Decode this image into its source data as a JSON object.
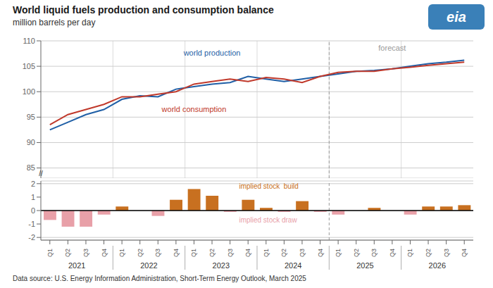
{
  "chart_data": [
    {
      "type": "line",
      "title": "World liquid fuels production and consumption balance",
      "subtitle": "million barrels per day",
      "categories": [
        "Q1",
        "Q2",
        "Q3",
        "Q4",
        "Q1",
        "Q2",
        "Q3",
        "Q4",
        "Q1",
        "Q2",
        "Q3",
        "Q4",
        "Q1",
        "Q2",
        "Q3",
        "Q4",
        "Q1",
        "Q2",
        "Q3",
        "Q4",
        "Q1",
        "Q2",
        "Q3",
        "Q4"
      ],
      "groups": [
        "2021",
        "2022",
        "2023",
        "2024",
        "2025",
        "2026"
      ],
      "series": [
        {
          "name": "world production",
          "color": "#1f5fa6",
          "values": [
            92.5,
            94.0,
            95.5,
            96.5,
            98.5,
            99.2,
            99.0,
            100.5,
            101.0,
            101.5,
            101.8,
            103.0,
            102.5,
            102.0,
            102.5,
            103.0,
            103.5,
            104.0,
            104.2,
            104.5,
            105.0,
            105.5,
            105.8,
            106.2
          ]
        },
        {
          "name": "world consumption",
          "color": "#c0392b",
          "values": [
            93.5,
            95.5,
            96.5,
            97.5,
            99.0,
            99.0,
            99.5,
            100.0,
            101.5,
            102.0,
            102.5,
            102.0,
            102.8,
            102.5,
            101.8,
            103.0,
            103.8,
            104.0,
            104.0,
            104.5,
            104.8,
            105.2,
            105.5,
            105.8
          ]
        }
      ],
      "ylim": [
        83,
        110
      ],
      "yticks": [
        85,
        90,
        95,
        100,
        105,
        110
      ],
      "grid": true,
      "forecast_start_index": 16,
      "annotations": [
        {
          "text": "forecast",
          "color": "#999999"
        },
        {
          "text": "//",
          "color": "#333333"
        },
        {
          "text": "eia",
          "color": "#ffffff"
        },
        {
          "text": "Data source: U.S. Energy Information Administration, Short-Term Energy Outlook, March 2025",
          "color": "#333333"
        }
      ]
    },
    {
      "type": "bar",
      "categories": [
        "Q1",
        "Q2",
        "Q3",
        "Q4",
        "Q1",
        "Q2",
        "Q3",
        "Q4",
        "Q1",
        "Q2",
        "Q3",
        "Q4",
        "Q1",
        "Q2",
        "Q3",
        "Q4",
        "Q1",
        "Q2",
        "Q3",
        "Q4",
        "Q1",
        "Q2",
        "Q3",
        "Q4"
      ],
      "groups": [
        "2021",
        "2022",
        "2023",
        "2024",
        "2025",
        "2026"
      ],
      "values": [
        -0.7,
        -1.2,
        -1.2,
        -0.3,
        0.3,
        0.0,
        -0.4,
        0.8,
        1.6,
        1.1,
        -0.1,
        0.8,
        0.2,
        -0.1,
        0.7,
        -0.1,
        -0.3,
        0.0,
        0.2,
        0.0,
        -0.3,
        0.3,
        0.3,
        0.4
      ],
      "colors": [
        "#e8a0a8",
        "#e8a0a8",
        "#e8a0a8",
        "#e8a0a8",
        "#c87020",
        "#c87020",
        "#e8a0a8",
        "#c87020",
        "#c87020",
        "#c87020",
        "#e8a0a8",
        "#c87020",
        "#c87020",
        "#e8a0a8",
        "#c87020",
        "#e8a0a8",
        "#e8a0a8",
        "#c87020",
        "#c87020",
        "#c87020",
        "#e8a0a8",
        "#c87020",
        "#c87020",
        "#c87020"
      ],
      "ylim": [
        -2.2,
        2.2
      ],
      "yticks": [
        -2,
        -1,
        0,
        1,
        2
      ],
      "grid": true,
      "forecast_start_index": 16,
      "annotations": [
        {
          "text": "implied stock  build",
          "color": "#c87020"
        },
        {
          "text": "implied stock draw",
          "color": "#e8a0a8"
        }
      ]
    }
  ]
}
